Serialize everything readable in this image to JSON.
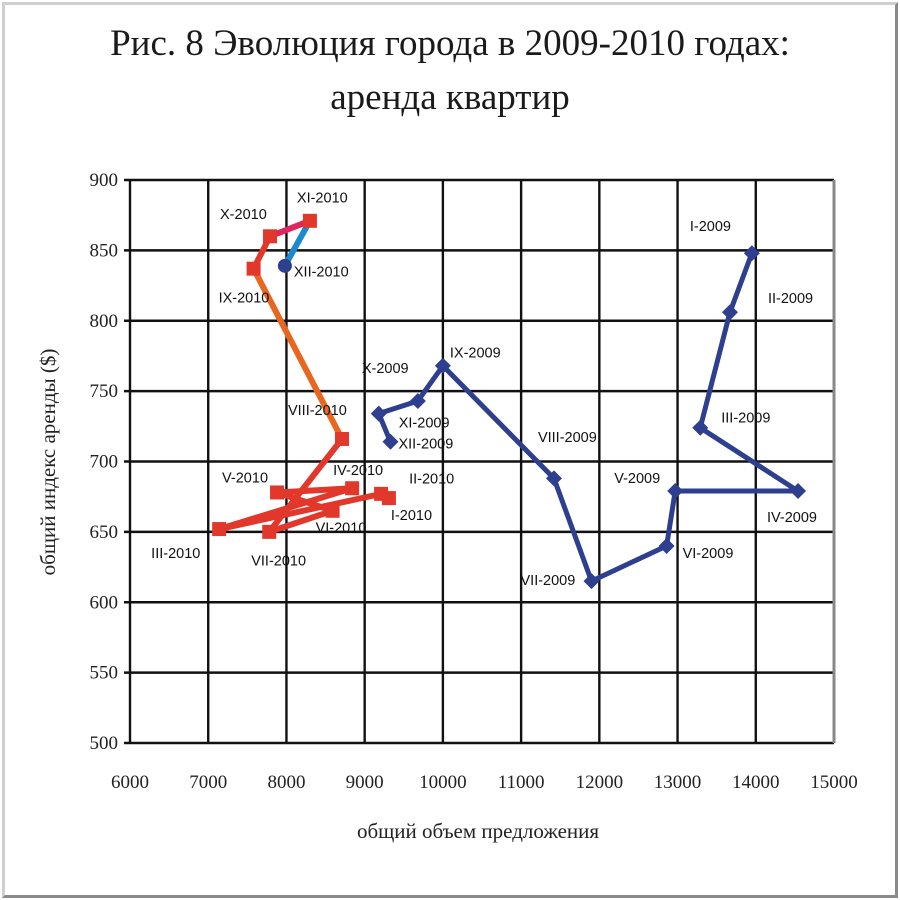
{
  "chart_data": {
    "type": "line",
    "title": "Рис. 8 Эволюция города в 2009-2010 годах:",
    "subtitle": "аренда квартир",
    "xlabel": "общий объем предложения",
    "ylabel": "общий индекс аренды ($)",
    "xlim": [
      6000,
      15000
    ],
    "ylim": [
      500,
      900
    ],
    "xticks": [
      "6000",
      "7000",
      "8000",
      "9000",
      "10000",
      "11000",
      "12000",
      "13000",
      "14000",
      "15000"
    ],
    "yticks": [
      "500",
      "550",
      "600",
      "650",
      "700",
      "750",
      "800",
      "850",
      "900"
    ],
    "grid": true,
    "series": [
      {
        "color": "#2e3f8f",
        "marker": "diamond",
        "points": [
          {
            "label": "I-2009",
            "x": 13950,
            "y": 848
          },
          {
            "label": "II-2009",
            "x": 13670,
            "y": 806
          },
          {
            "label": "III-2009",
            "x": 13290,
            "y": 724
          },
          {
            "label": "IV-2009",
            "x": 14540,
            "y": 679
          },
          {
            "label": "V-2009",
            "x": 12970,
            "y": 679
          },
          {
            "label": "VI-2009",
            "x": 12860,
            "y": 640
          },
          {
            "label": "VII-2009",
            "x": 11900,
            "y": 615
          },
          {
            "label": "VIII-2009",
            "x": 11420,
            "y": 688
          },
          {
            "label": "IX-2009",
            "x": 10000,
            "y": 768
          },
          {
            "label": "X-2009",
            "x": 9680,
            "y": 743
          },
          {
            "label": "XI-2009",
            "x": 9180,
            "y": 734
          },
          {
            "label": "XII-2009",
            "x": 9330,
            "y": 714
          }
        ]
      },
      {
        "color": "#e2372b",
        "marker": "square",
        "segment_colors": [
          "#e2372b",
          "#e2372b",
          "#e2372b",
          "#e2372b",
          "#e2372b",
          "#e2372b",
          "#e2372b",
          "#e8661f",
          "#e2372b",
          "#e0245e",
          "#1b8ad0"
        ],
        "last_marker_color": "#2e3f8f",
        "points": [
          {
            "label": "I-2010",
            "x": 9310,
            "y": 674
          },
          {
            "label": "II-2010",
            "x": 9210,
            "y": 677
          },
          {
            "label": "III-2010",
            "x": 7140,
            "y": 652
          },
          {
            "label": "IV-2010",
            "x": 8840,
            "y": 681
          },
          {
            "label": "V-2010",
            "x": 7880,
            "y": 678
          },
          {
            "label": "VI-2010",
            "x": 8590,
            "y": 665
          },
          {
            "label": "VII-2010",
            "x": 7780,
            "y": 650
          },
          {
            "label": "VIII-2010",
            "x": 8710,
            "y": 716
          },
          {
            "label": "IX-2010",
            "x": 7580,
            "y": 837
          },
          {
            "label": "X-2010",
            "x": 7790,
            "y": 860
          },
          {
            "label": "XI-2010",
            "x": 8300,
            "y": 871
          },
          {
            "label": "XII-2010",
            "x": 7980,
            "y": 839
          }
        ]
      }
    ]
  }
}
